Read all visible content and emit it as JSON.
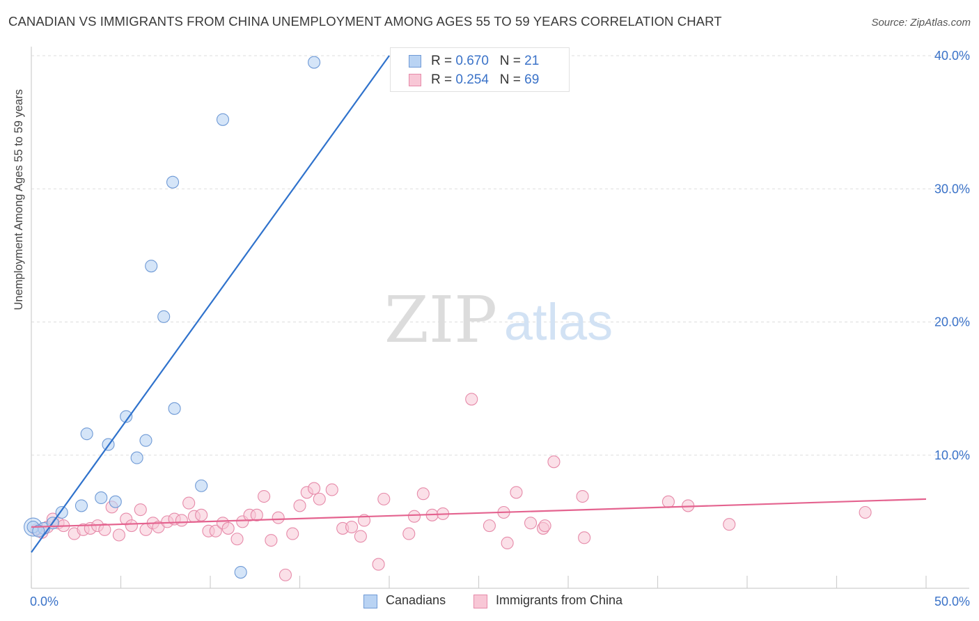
{
  "title": "CANADIAN VS IMMIGRANTS FROM CHINA UNEMPLOYMENT AMONG AGES 55 TO 59 YEARS CORRELATION CHART",
  "source": "Source: ZipAtlas.com",
  "watermark": {
    "zip": "ZIP",
    "atlas": "atlas"
  },
  "legend": {
    "rows": [
      {
        "r_label": "R = ",
        "r_value": "0.670",
        "n_label": "N = ",
        "n_value": "21"
      },
      {
        "r_label": "R = ",
        "r_value": "0.254",
        "n_label": "N = ",
        "n_value": "69"
      }
    ]
  },
  "colors": {
    "canadians_fill": "#b9d3f3",
    "canadians_stroke": "#6f9ad6",
    "canadians_line": "#2f72cc",
    "china_fill": "#f8c7d6",
    "china_stroke": "#e68aa9",
    "china_line": "#e4638f",
    "axis_label": "#3a72c8",
    "grid": "#dddddd"
  },
  "chart_data": {
    "type": "scatter",
    "title": "CANADIAN VS IMMIGRANTS FROM CHINA UNEMPLOYMENT AMONG AGES 55 TO 59 YEARS CORRELATION CHART",
    "xlabel": "",
    "ylabel": "Unemployment Among Ages 55 to 59 years",
    "xlim": [
      0,
      50
    ],
    "ylim": [
      0,
      40
    ],
    "x_tick_labels": [
      "0.0%",
      "50.0%"
    ],
    "y_tick_labels": [
      "10.0%",
      "20.0%",
      "30.0%",
      "40.0%"
    ],
    "y_ticks": [
      10,
      20,
      30,
      40
    ],
    "grid": true,
    "legend_position": "top-center",
    "series": [
      {
        "name": "Canadians",
        "r": 0.67,
        "n": 21,
        "trend": {
          "x": [
            0,
            20.0
          ],
          "y": [
            2.7,
            40.0
          ]
        },
        "points": [
          [
            0.1,
            4.6
          ],
          [
            0.7,
            4.5
          ],
          [
            1.2,
            4.9
          ],
          [
            1.7,
            5.7
          ],
          [
            2.8,
            6.2
          ],
          [
            3.1,
            11.6
          ],
          [
            3.9,
            6.8
          ],
          [
            4.3,
            10.8
          ],
          [
            4.7,
            6.5
          ],
          [
            5.3,
            12.9
          ],
          [
            5.9,
            9.8
          ],
          [
            6.4,
            11.1
          ],
          [
            6.7,
            24.2
          ],
          [
            7.4,
            20.4
          ],
          [
            7.9,
            30.5
          ],
          [
            8.0,
            13.5
          ],
          [
            9.5,
            7.7
          ],
          [
            10.7,
            35.2
          ],
          [
            11.7,
            1.2
          ],
          [
            15.8,
            39.5
          ],
          [
            0.4,
            4.3
          ]
        ]
      },
      {
        "name": "Immigrants from China",
        "r": 0.254,
        "n": 69,
        "trend": {
          "x": [
            0,
            50
          ],
          "y": [
            4.6,
            6.7
          ]
        },
        "points": [
          [
            0.3,
            4.4
          ],
          [
            0.6,
            4.2
          ],
          [
            0.9,
            4.6
          ],
          [
            1.2,
            5.2
          ],
          [
            1.5,
            4.9
          ],
          [
            1.8,
            4.7
          ],
          [
            2.4,
            4.1
          ],
          [
            2.9,
            4.4
          ],
          [
            3.3,
            4.5
          ],
          [
            3.7,
            4.7
          ],
          [
            4.1,
            4.4
          ],
          [
            4.5,
            6.1
          ],
          [
            4.9,
            4.0
          ],
          [
            5.3,
            5.2
          ],
          [
            5.6,
            4.7
          ],
          [
            6.1,
            5.9
          ],
          [
            6.4,
            4.4
          ],
          [
            6.8,
            4.9
          ],
          [
            7.1,
            4.6
          ],
          [
            7.6,
            5.0
          ],
          [
            8.0,
            5.2
          ],
          [
            8.4,
            5.1
          ],
          [
            8.8,
            6.4
          ],
          [
            9.1,
            5.4
          ],
          [
            9.5,
            5.5
          ],
          [
            9.9,
            4.3
          ],
          [
            10.3,
            4.3
          ],
          [
            10.7,
            4.9
          ],
          [
            11.0,
            4.5
          ],
          [
            11.5,
            3.7
          ],
          [
            11.8,
            5.0
          ],
          [
            12.2,
            5.5
          ],
          [
            12.6,
            5.5
          ],
          [
            13.0,
            6.9
          ],
          [
            13.4,
            3.6
          ],
          [
            13.8,
            5.3
          ],
          [
            14.2,
            1.0
          ],
          [
            14.6,
            4.1
          ],
          [
            15.0,
            6.2
          ],
          [
            15.4,
            7.2
          ],
          [
            15.8,
            7.5
          ],
          [
            16.1,
            6.7
          ],
          [
            16.8,
            7.4
          ],
          [
            17.4,
            4.5
          ],
          [
            17.9,
            4.6
          ],
          [
            18.4,
            3.9
          ],
          [
            18.6,
            5.1
          ],
          [
            19.4,
            1.8
          ],
          [
            19.7,
            6.7
          ],
          [
            21.1,
            4.1
          ],
          [
            21.4,
            5.4
          ],
          [
            21.9,
            7.1
          ],
          [
            22.4,
            5.5
          ],
          [
            23.0,
            5.6
          ],
          [
            24.6,
            14.2
          ],
          [
            25.6,
            4.7
          ],
          [
            26.4,
            5.7
          ],
          [
            26.6,
            3.4
          ],
          [
            27.1,
            7.2
          ],
          [
            27.9,
            4.9
          ],
          [
            28.6,
            4.5
          ],
          [
            28.7,
            4.7
          ],
          [
            29.2,
            9.5
          ],
          [
            30.8,
            6.9
          ],
          [
            30.9,
            3.8
          ],
          [
            35.6,
            6.5
          ],
          [
            36.7,
            6.2
          ],
          [
            39.0,
            4.8
          ],
          [
            46.6,
            5.7
          ]
        ]
      }
    ]
  },
  "bottom_legend": {
    "items": [
      {
        "label": "Canadians"
      },
      {
        "label": "Immigrants from China"
      }
    ]
  }
}
